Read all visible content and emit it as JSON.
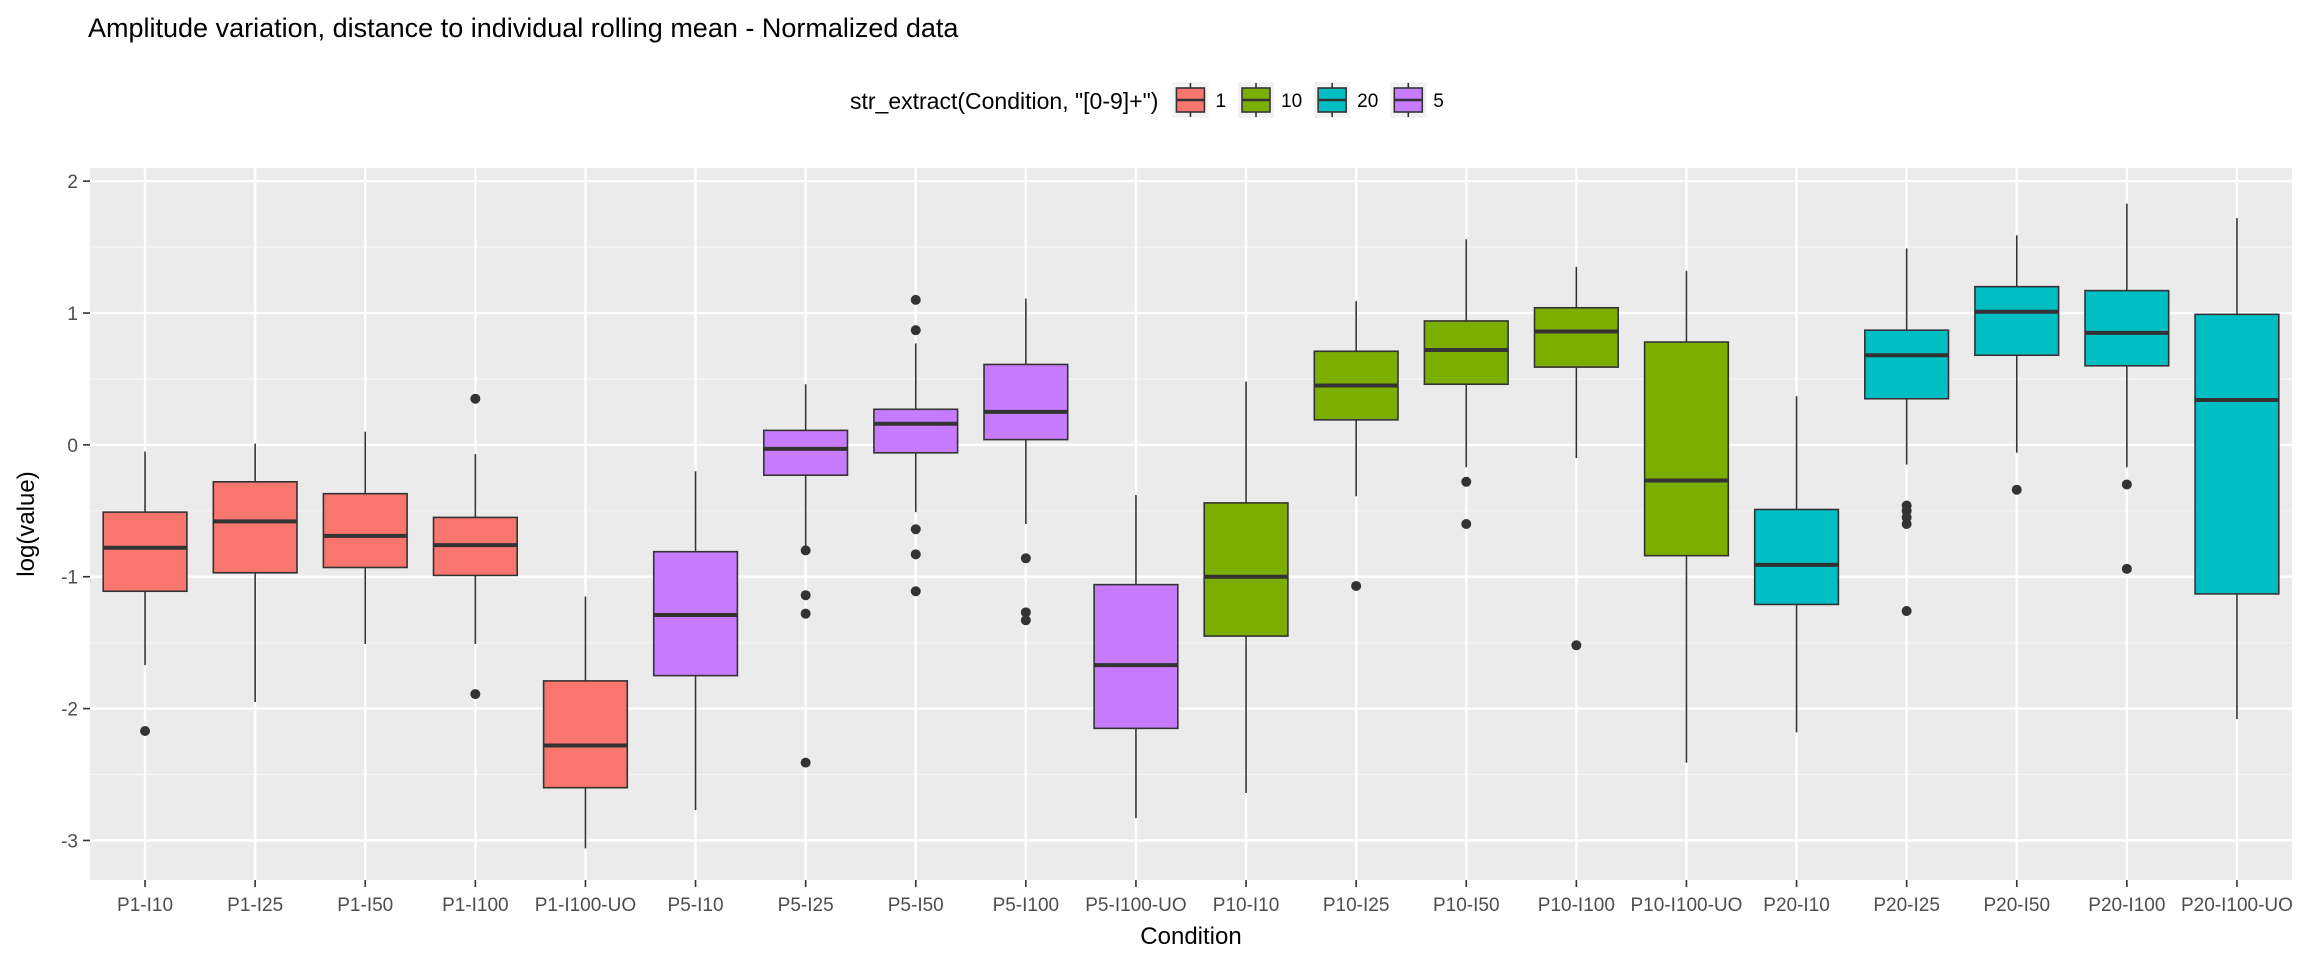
{
  "chart_data": {
    "type": "boxplot",
    "title": "Amplitude variation, distance to individual rolling mean - Normalized data",
    "xlabel": "Condition",
    "ylabel": "log(value)",
    "ylim": [
      -3.3,
      2.1
    ],
    "yticks": [
      -3,
      -2,
      -1,
      0,
      1,
      2
    ],
    "grid": true,
    "legend": {
      "title": "str_extract(Condition, \"[0-9]+\")",
      "placement": "top",
      "entries": [
        {
          "label": "1",
          "color": "#F8766D"
        },
        {
          "label": "10",
          "color": "#7CAE00"
        },
        {
          "label": "20",
          "color": "#00BFC4"
        },
        {
          "label": "5",
          "color": "#C77CFF"
        }
      ]
    },
    "boxes": [
      {
        "category": "P1-I10",
        "group": "1",
        "whisker_low": -1.67,
        "q1": -1.11,
        "median": -0.78,
        "q3": -0.51,
        "whisker_high": -0.05,
        "outliers": [
          -2.17
        ]
      },
      {
        "category": "P1-I25",
        "group": "1",
        "whisker_low": -1.95,
        "q1": -0.97,
        "median": -0.58,
        "q3": -0.28,
        "whisker_high": 0.01,
        "outliers": []
      },
      {
        "category": "P1-I50",
        "group": "1",
        "whisker_low": -1.51,
        "q1": -0.93,
        "median": -0.69,
        "q3": -0.37,
        "whisker_high": 0.1,
        "outliers": []
      },
      {
        "category": "P1-I100",
        "group": "1",
        "whisker_low": -1.51,
        "q1": -0.99,
        "median": -0.76,
        "q3": -0.55,
        "whisker_high": -0.07,
        "outliers": [
          -1.89,
          0.35
        ]
      },
      {
        "category": "P1-I100-UO",
        "group": "1",
        "whisker_low": -3.06,
        "q1": -2.6,
        "median": -2.28,
        "q3": -1.79,
        "whisker_high": -1.15,
        "outliers": []
      },
      {
        "category": "P5-I10",
        "group": "5",
        "whisker_low": -2.77,
        "q1": -1.75,
        "median": -1.29,
        "q3": -0.81,
        "whisker_high": -0.2,
        "outliers": []
      },
      {
        "category": "P5-I25",
        "group": "5",
        "whisker_low": -0.8,
        "q1": -0.23,
        "median": -0.03,
        "q3": 0.11,
        "whisker_high": 0.46,
        "outliers": [
          -0.8,
          -1.14,
          -1.28,
          -2.41
        ]
      },
      {
        "category": "P5-I50",
        "group": "5",
        "whisker_low": -0.51,
        "q1": -0.06,
        "median": 0.16,
        "q3": 0.27,
        "whisker_high": 0.77,
        "outliers": [
          1.1,
          0.87,
          -0.64,
          -0.83,
          -1.11
        ]
      },
      {
        "category": "P5-I100",
        "group": "5",
        "whisker_low": -0.6,
        "q1": 0.04,
        "median": 0.25,
        "q3": 0.61,
        "whisker_high": 1.11,
        "outliers": [
          -0.86,
          -1.27,
          -1.33
        ]
      },
      {
        "category": "P5-I100-UO",
        "group": "5",
        "whisker_low": -2.83,
        "q1": -2.15,
        "median": -1.67,
        "q3": -1.06,
        "whisker_high": -0.38,
        "outliers": []
      },
      {
        "category": "P10-I10",
        "group": "10",
        "whisker_low": -2.64,
        "q1": -1.45,
        "median": -1.0,
        "q3": -0.44,
        "whisker_high": 0.48,
        "outliers": []
      },
      {
        "category": "P10-I25",
        "group": "10",
        "whisker_low": -0.39,
        "q1": 0.19,
        "median": 0.45,
        "q3": 0.71,
        "whisker_high": 1.09,
        "outliers": [
          -1.07
        ]
      },
      {
        "category": "P10-I50",
        "group": "10",
        "whisker_low": -0.17,
        "q1": 0.46,
        "median": 0.72,
        "q3": 0.94,
        "whisker_high": 1.56,
        "outliers": [
          -0.28,
          -0.6
        ]
      },
      {
        "category": "P10-I100",
        "group": "10",
        "whisker_low": -0.1,
        "q1": 0.59,
        "median": 0.86,
        "q3": 1.04,
        "whisker_high": 1.35,
        "outliers": [
          -1.52
        ]
      },
      {
        "category": "P10-I100-UO",
        "group": "10",
        "whisker_low": -2.41,
        "q1": -0.84,
        "median": -0.27,
        "q3": 0.78,
        "whisker_high": 1.32,
        "outliers": []
      },
      {
        "category": "P20-I10",
        "group": "20",
        "whisker_low": -2.18,
        "q1": -1.21,
        "median": -0.91,
        "q3": -0.49,
        "whisker_high": 0.37,
        "outliers": []
      },
      {
        "category": "P20-I25",
        "group": "20",
        "whisker_low": -0.15,
        "q1": 0.35,
        "median": 0.68,
        "q3": 0.87,
        "whisker_high": 1.49,
        "outliers": [
          -0.46,
          -0.5,
          -0.55,
          -0.6,
          -1.26
        ]
      },
      {
        "category": "P20-I50",
        "group": "20",
        "whisker_low": -0.06,
        "q1": 0.68,
        "median": 1.01,
        "q3": 1.2,
        "whisker_high": 1.59,
        "outliers": [
          -0.34
        ]
      },
      {
        "category": "P20-I100",
        "group": "20",
        "whisker_low": -0.17,
        "q1": 0.6,
        "median": 0.85,
        "q3": 1.17,
        "whisker_high": 1.83,
        "outliers": [
          -0.3,
          -0.94
        ]
      },
      {
        "category": "P20-I100-UO",
        "group": "20",
        "whisker_low": -2.08,
        "q1": -1.13,
        "median": 0.34,
        "q3": 0.99,
        "whisker_high": 1.72,
        "outliers": []
      }
    ]
  }
}
